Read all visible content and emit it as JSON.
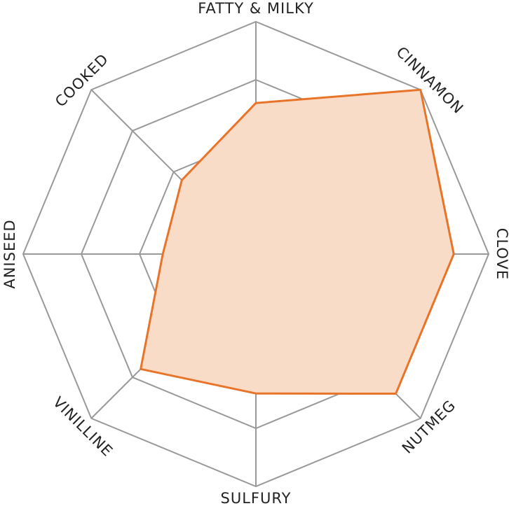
{
  "chart_data": {
    "type": "radar",
    "categories": [
      "FATTY & MILKY",
      "CINNAMON",
      "CLOVE",
      "NUTMEG",
      "SULFURY",
      "VINILLINE",
      "ANISEED",
      "COOKED"
    ],
    "values": [
      2.6,
      4.0,
      3.4,
      3.4,
      2.4,
      2.8,
      1.6,
      1.8
    ],
    "color": "#e8742a",
    "fill": "#f9dcc8",
    "rlim": [
      0,
      4
    ],
    "rticks": [
      1,
      2,
      3,
      4
    ],
    "grid": true
  }
}
